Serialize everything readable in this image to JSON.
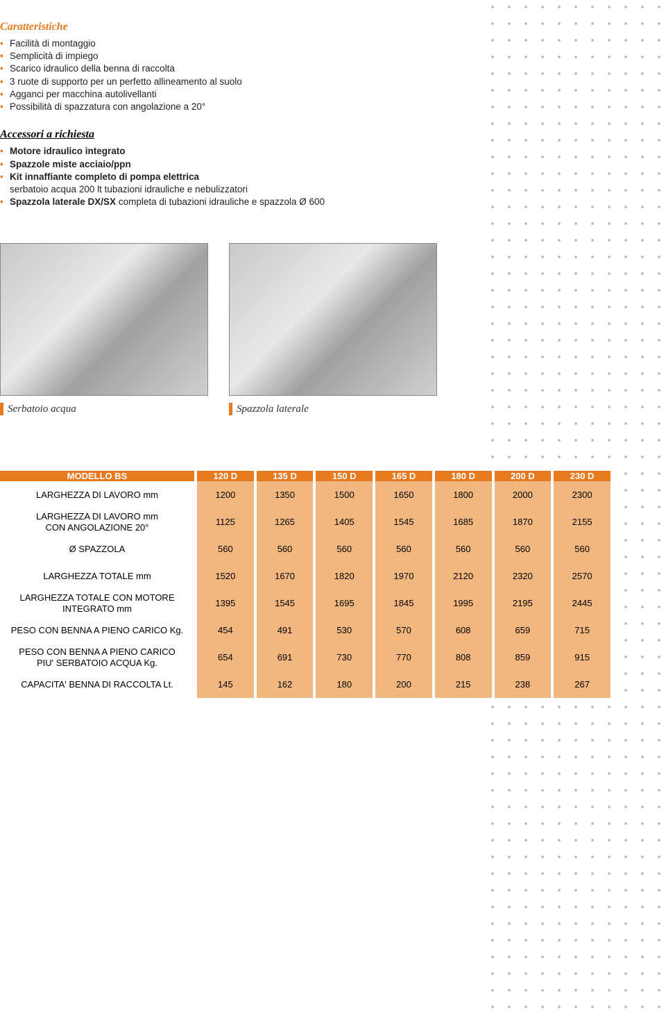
{
  "decor": {
    "dot_color": "#8a8a8a",
    "dot_spacing": 24,
    "dot_radius": 2
  },
  "characteristics": {
    "title": "Caratteristiche",
    "items": [
      "Facilità di montaggio",
      "Semplicità di impiego",
      "Scarico idraulico della benna di raccolta",
      "3 ruote di supporto per un perfetto allineamento al suolo",
      "Agganci per macchina autolivellanti",
      "Possibilità di spazzatura con angolazione a 20°"
    ]
  },
  "accessories": {
    "title": "Accessori a richiesta",
    "items": [
      {
        "bold": true,
        "text": "Motore idraulico integrato"
      },
      {
        "bold": true,
        "text": "Spazzole miste acciaio/ppn"
      },
      {
        "bold": true,
        "text": "Kit innaffiante completo di pompa elettrica"
      },
      {
        "bold": false,
        "text": "serbatoio acqua 200 lt tubazioni idrauliche e nebulizzatori",
        "no_bullet": true
      },
      {
        "bold": true,
        "text": "Spazzola laterale DX/SX",
        "tail": " completa di tubazioni idrauliche e spazzola Ø 600"
      }
    ]
  },
  "captions": {
    "left": "Serbatoio acqua",
    "right": "Spazzola laterale"
  },
  "table": {
    "header_bg": "#e57a1f",
    "header_fg": "#ffffff",
    "cell_bg": "#f2b77e",
    "cell_fg": "#000000",
    "label_header": "MODELLO BS",
    "columns": [
      "120 D",
      "135 D",
      "150 D",
      "165 D",
      "180 D",
      "200 D",
      "230 D"
    ],
    "rows": [
      {
        "label": "LARGHEZZA DI LAVORO mm",
        "values": [
          "1200",
          "1350",
          "1500",
          "1650",
          "1800",
          "2000",
          "2300"
        ]
      },
      {
        "label": "LARGHEZZA DI LAVORO mm\nCON ANGOLAZIONE 20°",
        "values": [
          "1125",
          "1265",
          "1405",
          "1545",
          "1685",
          "1870",
          "2155"
        ]
      },
      {
        "label": "Ø SPAZZOLA",
        "values": [
          "560",
          "560",
          "560",
          "560",
          "560",
          "560",
          "560"
        ]
      },
      {
        "label": "LARGHEZZA TOTALE mm",
        "values": [
          "1520",
          "1670",
          "1820",
          "1970",
          "2120",
          "2320",
          "2570"
        ]
      },
      {
        "label": "LARGHEZZA TOTALE CON MOTORE\nINTEGRATO mm",
        "values": [
          "1395",
          "1545",
          "1695",
          "1845",
          "1995",
          "2195",
          "2445"
        ]
      },
      {
        "label": "PESO CON BENNA A PIENO CARICO Kg.",
        "values": [
          "454",
          "491",
          "530",
          "570",
          "608",
          "659",
          "715"
        ]
      },
      {
        "label": "PESO CON BENNA A PIENO CARICO\nPIU' SERBATOIO ACQUA Kg.",
        "values": [
          "654",
          "691",
          "730",
          "770",
          "808",
          "859",
          "915"
        ]
      },
      {
        "label": "CAPACITA' BENNA DI RACCOLTA Lt.",
        "values": [
          "145",
          "162",
          "180",
          "200",
          "215",
          "238",
          "267"
        ]
      }
    ]
  }
}
